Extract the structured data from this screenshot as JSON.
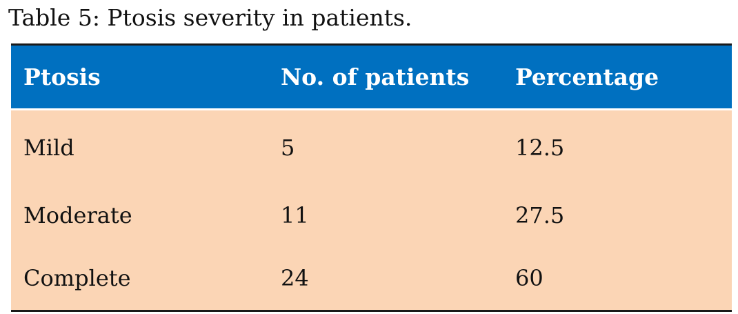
{
  "caption": "Table 5: Ptosis severity in patients.",
  "table": {
    "headers": [
      "Ptosis",
      "No. of patients",
      "Percentage"
    ],
    "rows": [
      [
        "Mild",
        "5",
        "12.5"
      ],
      [
        "Moderate",
        "11",
        "27.5"
      ],
      [
        "Complete",
        "24",
        "60"
      ]
    ]
  },
  "colors": {
    "header_bg": "#0070c0",
    "header_text": "#ffffff",
    "row_bg": "#fbd5b5",
    "rule": "#1a1a1a"
  }
}
